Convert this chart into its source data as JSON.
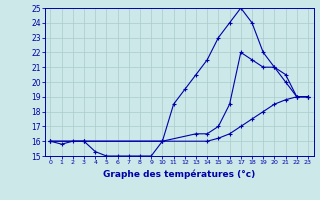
{
  "title": "Graphe des températures (°c)",
  "bg_color": "#cce8e8",
  "grid_color": "#aacccc",
  "line_color": "#0000aa",
  "xlim": [
    -0.5,
    23.5
  ],
  "ylim": [
    15,
    25
  ],
  "xticks": [
    0,
    1,
    2,
    3,
    4,
    5,
    6,
    7,
    8,
    9,
    10,
    11,
    12,
    13,
    14,
    15,
    16,
    17,
    18,
    19,
    20,
    21,
    22,
    23
  ],
  "yticks": [
    15,
    16,
    17,
    18,
    19,
    20,
    21,
    22,
    23,
    24,
    25
  ],
  "series1_x": [
    0,
    1,
    2,
    3,
    4,
    5,
    6,
    7,
    8,
    9,
    10,
    11,
    12,
    13,
    14,
    15,
    16,
    17,
    18,
    19,
    20,
    21,
    22,
    23
  ],
  "series1_y": [
    16,
    15.8,
    16,
    16,
    15.3,
    15,
    15,
    15,
    15,
    15,
    16,
    18.5,
    19.5,
    20.5,
    21.5,
    23,
    24,
    25,
    24,
    22,
    21,
    20.5,
    19,
    19
  ],
  "series2_x": [
    0,
    3,
    10,
    13,
    14,
    15,
    16,
    17,
    18,
    19,
    20,
    21,
    22,
    23
  ],
  "series2_y": [
    16,
    16,
    16,
    16.5,
    16.5,
    17,
    18.5,
    22,
    21.5,
    21,
    21,
    20,
    19,
    19
  ],
  "series3_x": [
    0,
    3,
    10,
    14,
    15,
    16,
    17,
    18,
    19,
    20,
    21,
    22,
    23
  ],
  "series3_y": [
    16,
    16,
    16,
    16,
    16.2,
    16.5,
    17,
    17.5,
    18,
    18.5,
    18.8,
    19,
    19
  ]
}
